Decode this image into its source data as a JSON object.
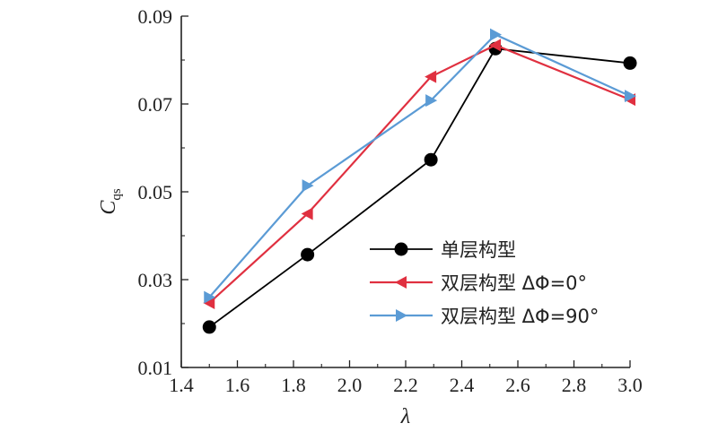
{
  "chart_data": {
    "type": "line",
    "xlabel": "λ",
    "ylabel_main": "C",
    "ylabel_sub": "qs",
    "xlim": [
      1.4,
      3.0
    ],
    "ylim": [
      0.01,
      0.09
    ],
    "xticks": [
      "1.4",
      "1.6",
      "1.8",
      "2.0",
      "2.2",
      "2.4",
      "2.6",
      "2.8",
      "3.0"
    ],
    "yticks": [
      "0.01",
      "0.03",
      "0.05",
      "0.07",
      "0.09"
    ],
    "grid": false,
    "legend_position": "lower-right",
    "series": [
      {
        "name": "单层构型",
        "color": "#000000",
        "marker": "circle",
        "x": [
          1.5,
          1.85,
          2.29,
          2.52,
          3.0
        ],
        "y": [
          0.0192,
          0.0357,
          0.0573,
          0.0826,
          0.0793
        ]
      },
      {
        "name": "双层构型 ΔΦ=0°",
        "color": "#e03040",
        "marker": "triangle-left",
        "x": [
          1.5,
          1.85,
          2.29,
          2.52,
          3.0
        ],
        "y": [
          0.0247,
          0.045,
          0.0762,
          0.0834,
          0.071
        ]
      },
      {
        "name": "双层构型 ΔΦ=90°",
        "color": "#5b9bd5",
        "marker": "triangle-right",
        "x": [
          1.5,
          1.85,
          2.29,
          2.52,
          3.0
        ],
        "y": [
          0.026,
          0.0514,
          0.0708,
          0.0858,
          0.0718
        ]
      }
    ]
  }
}
